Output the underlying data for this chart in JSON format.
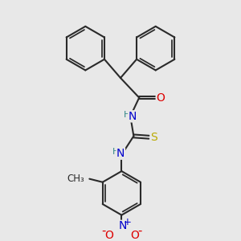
{
  "background_color": "#e8e8e8",
  "line_color": "#2a2a2a",
  "bond_width": 1.5,
  "atom_colors": {
    "N": "#0000cc",
    "O": "#dd0000",
    "S": "#bbaa00",
    "H": "#338888",
    "C": "#2a2a2a"
  },
  "font_size": 9.5
}
